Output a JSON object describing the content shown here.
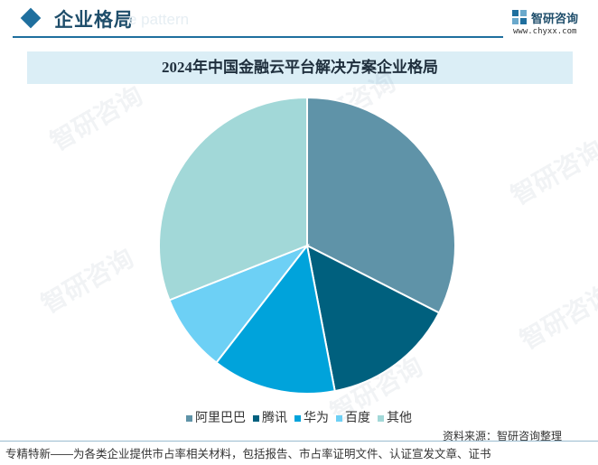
{
  "header": {
    "section_title": "企业格局",
    "bg_text": "e pattern",
    "logo_name": "智研咨询",
    "logo_url": "www.chyxx.com"
  },
  "watermark_text": "智研咨询",
  "chart_data": {
    "type": "pie",
    "title": "2024年中国金融云平台解决方案企业格局",
    "categories": [
      "阿里巴巴",
      "腾讯",
      "华为",
      "百度",
      "其他"
    ],
    "values": [
      32.5,
      14.5,
      13.5,
      8.5,
      31.0
    ],
    "colors": [
      "#5f93a8",
      "#00607e",
      "#00a3db",
      "#6dd0f5",
      "#a2d8d8"
    ],
    "legend_position": "bottom",
    "start_angle_deg": 0,
    "direction": "clockwise"
  },
  "source": "资料来源：智研咨询整理",
  "footer": "专精特新——为各类企业提供市占率相关材料，包括报告、市占率证明文件、认证宣发文章、证书"
}
